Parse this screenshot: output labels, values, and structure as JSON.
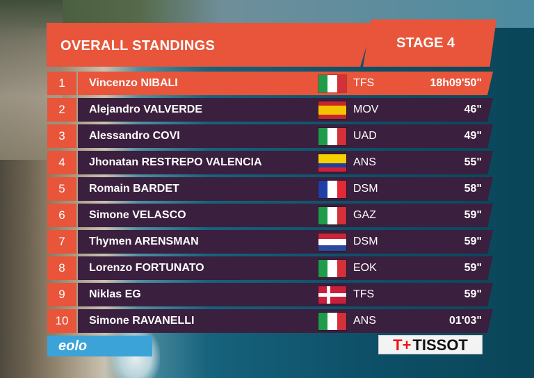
{
  "header": {
    "title": "OVERALL STANDINGS",
    "stage": "STAGE 4"
  },
  "rows": [
    {
      "pos": "1",
      "name": "Vincenzo NIBALI",
      "team": "TFS",
      "time": "18h09'50\"",
      "flag": "italy",
      "jersey_icon": "red-white-jersey-icon"
    },
    {
      "pos": "2",
      "name": "Alejandro VALVERDE",
      "team": "MOV",
      "time": "46\"",
      "flag": "spain",
      "jersey_icon": "blue-jersey-icon"
    },
    {
      "pos": "3",
      "name": "Alessandro COVI",
      "team": "UAD",
      "time": "49\"",
      "flag": "italy",
      "jersey_icon": "red-white-jersey-icon"
    },
    {
      "pos": "4",
      "name": "Jhonatan RESTREPO VALENCIA",
      "team": "ANS",
      "time": "55\"",
      "flag": "colombia",
      "jersey_icon": "red-jersey-icon"
    },
    {
      "pos": "5",
      "name": "Romain BARDET",
      "team": "DSM",
      "time": "58\"",
      "flag": "france",
      "jersey_icon": "dark-jersey-icon"
    },
    {
      "pos": "6",
      "name": "Simone VELASCO",
      "team": "GAZ",
      "time": "59\"",
      "flag": "italy",
      "jersey_icon": "light-blue-jersey-icon"
    },
    {
      "pos": "7",
      "name": "Thymen ARENSMAN",
      "team": "DSM",
      "time": "59\"",
      "flag": "netherlands",
      "jersey_icon": "dark-jersey-icon"
    },
    {
      "pos": "8",
      "name": "Lorenzo FORTUNATO",
      "team": "EOK",
      "time": "59\"",
      "flag": "italy",
      "jersey_icon": "blue-jersey-icon"
    },
    {
      "pos": "9",
      "name": "Niklas EG",
      "team": "TFS",
      "time": "59\"",
      "flag": "denmark",
      "jersey_icon": "red-white-jersey-icon"
    },
    {
      "pos": "10",
      "name": "Simone RAVANELLI",
      "team": "ANS",
      "time": "01'03\"",
      "flag": "italy",
      "jersey_icon": "red-jersey-icon"
    }
  ],
  "sponsors": {
    "left": "eolo",
    "right": "TISSOT",
    "right_mark": "T+"
  },
  "colors": {
    "accent": "#e8553a",
    "row_bg": "#3b1f3e",
    "eolo_blue": "#3ba3d8"
  }
}
